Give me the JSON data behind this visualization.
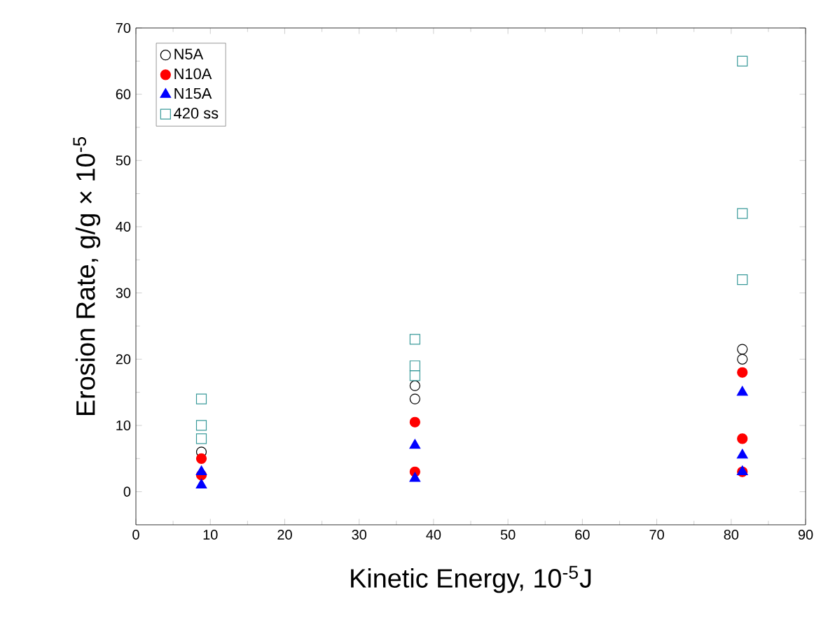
{
  "chart_data": {
    "type": "scatter",
    "xlabel": "Kinetic Energy, 10$^{-5}$J",
    "ylabel": "Erosion Rate, g/g × 10$^{-5}$",
    "xlim": [
      0,
      90
    ],
    "ylim": [
      -5,
      70
    ],
    "xticks": [
      0,
      10,
      20,
      30,
      40,
      50,
      60,
      70,
      80,
      90
    ],
    "yticks": [
      0,
      10,
      20,
      30,
      40,
      50,
      60,
      70
    ],
    "legend": "top left",
    "grid": false,
    "series": [
      {
        "name": "N5A",
        "color": "#000000",
        "marker": "circle",
        "x": [
          8.8,
          37.5,
          37.5,
          81.5,
          81.5
        ],
        "values": [
          6,
          16,
          14,
          21.5,
          20
        ]
      },
      {
        "name": "N10A",
        "color": "#ff0000",
        "marker": "circle",
        "x": [
          8.8,
          8.8,
          37.5,
          37.5,
          81.5,
          81.5,
          81.5
        ],
        "values": [
          5,
          2.5,
          10.5,
          3,
          18,
          8,
          3
        ]
      },
      {
        "name": "N15A",
        "color": "#0000ff",
        "marker": "triangle",
        "x": [
          8.8,
          8.8,
          37.5,
          37.5,
          81.5,
          81.5,
          81.5
        ],
        "values": [
          3,
          1,
          7,
          2,
          15,
          5.5,
          3
        ]
      },
      {
        "name": "420 ss",
        "color": "#3a9a9a",
        "marker": "square",
        "x": [
          8.8,
          8.8,
          8.8,
          37.5,
          37.5,
          37.5,
          81.5,
          81.5,
          81.5
        ],
        "values": [
          14,
          10,
          8,
          23,
          19,
          17.5,
          65,
          42,
          32
        ]
      }
    ]
  }
}
